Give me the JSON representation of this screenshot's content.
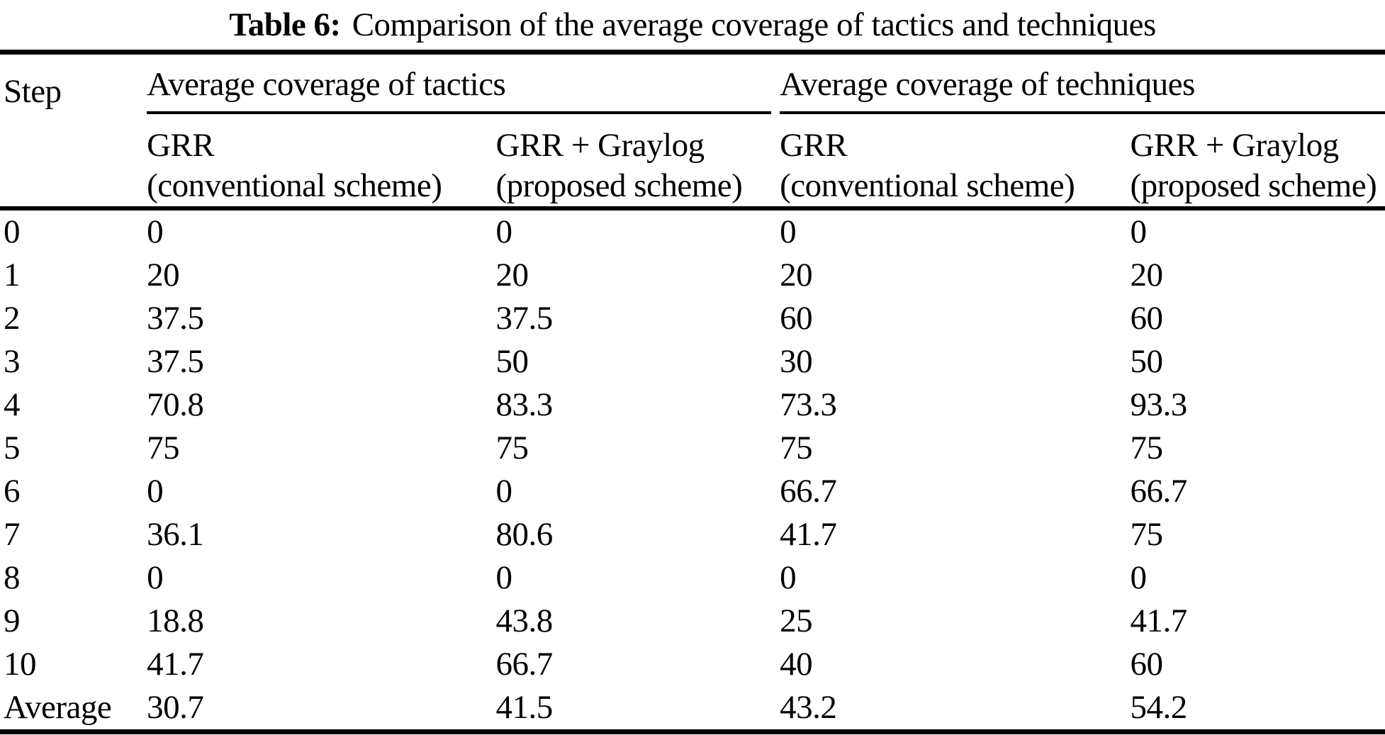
{
  "caption": {
    "label": "Table 6:",
    "text": "Comparison of the average coverage of tactics and techniques"
  },
  "table": {
    "step_header": "Step",
    "groups": [
      {
        "label": "Average coverage of tactics"
      },
      {
        "label": "Average coverage of techniques"
      }
    ],
    "subheaders": [
      {
        "line1": "GRR",
        "line2": "(conventional scheme)"
      },
      {
        "line1": "GRR + Graylog",
        "line2": "(proposed scheme)"
      },
      {
        "line1": "GRR",
        "line2": "(conventional scheme)"
      },
      {
        "line1": "GRR + Graylog",
        "line2": "(proposed scheme)"
      }
    ],
    "rows": [
      {
        "step": "0",
        "values": [
          "0",
          "0",
          "0",
          "0"
        ]
      },
      {
        "step": "1",
        "values": [
          "20",
          "20",
          "20",
          "20"
        ]
      },
      {
        "step": "2",
        "values": [
          "37.5",
          "37.5",
          "60",
          "60"
        ]
      },
      {
        "step": "3",
        "values": [
          "37.5",
          "50",
          "30",
          "50"
        ]
      },
      {
        "step": "4",
        "values": [
          "70.8",
          "83.3",
          "73.3",
          "93.3"
        ]
      },
      {
        "step": "5",
        "values": [
          "75",
          "75",
          "75",
          "75"
        ]
      },
      {
        "step": "6",
        "values": [
          "0",
          "0",
          "66.7",
          "66.7"
        ]
      },
      {
        "step": "7",
        "values": [
          "36.1",
          "80.6",
          "41.7",
          "75"
        ]
      },
      {
        "step": "8",
        "values": [
          "0",
          "0",
          "0",
          "0"
        ]
      },
      {
        "step": "9",
        "values": [
          "18.8",
          "43.8",
          "25",
          "41.7"
        ]
      },
      {
        "step": "10",
        "values": [
          "41.7",
          "66.7",
          "40",
          "60"
        ]
      },
      {
        "step": "Average",
        "values": [
          "30.7",
          "41.5",
          "43.2",
          "54.2"
        ]
      }
    ]
  }
}
